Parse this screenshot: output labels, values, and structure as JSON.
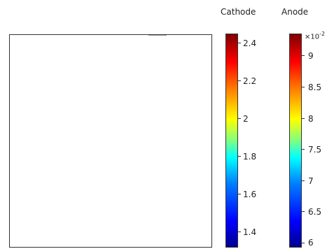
{
  "colorbars": {
    "cathode": {
      "title": "Cathode",
      "ticks": [
        "2.4",
        "2.2",
        "2",
        "1.8",
        "1.6",
        "1.4"
      ]
    },
    "anode": {
      "title": "Anode",
      "multiplier_base": "×10",
      "multiplier_exp": "-2",
      "ticks": [
        "9",
        "8.5",
        "8",
        "7.5",
        "7",
        "6.5",
        "6"
      ]
    }
  },
  "colors": {
    "frame": "#333333",
    "cathode_line_low": "#3050d0",
    "cathode_line_high": "#a01010",
    "anode_line": "#4060e0"
  }
}
